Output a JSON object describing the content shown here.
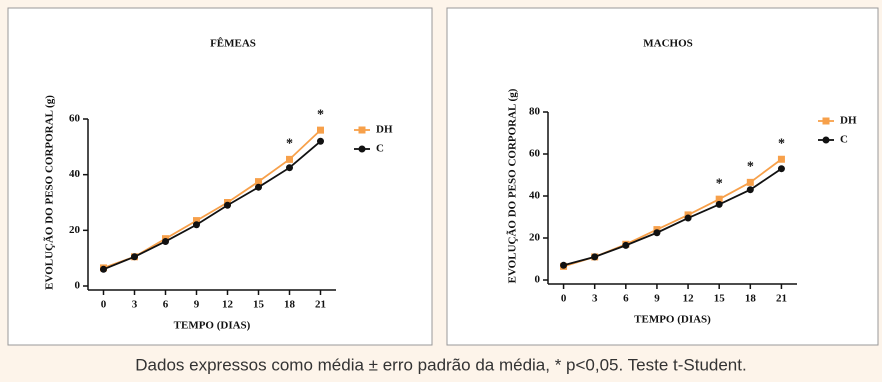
{
  "chart_data": [
    {
      "type": "line",
      "title": "FÊMEAS",
      "x_label": "TEMPO (DIAS)",
      "y_label": "EVOLUÇÃO DO PESO CORPORAL (g)",
      "x": [
        0,
        3,
        6,
        9,
        12,
        15,
        18,
        21
      ],
      "series": [
        {
          "name": "DH",
          "color": "#f7a04a",
          "marker": "square",
          "values": [
            6.5,
            10.5,
            17,
            23.5,
            30,
            37.5,
            45.5,
            56
          ]
        },
        {
          "name": "C",
          "color": "#111111",
          "marker": "circle",
          "values": [
            6,
            10.5,
            16,
            22,
            29,
            35.5,
            42.5,
            52
          ]
        }
      ],
      "xlim": [
        -1.5,
        22.5
      ],
      "xticks": [
        0,
        3,
        6,
        9,
        12,
        15,
        18,
        21
      ],
      "ylim": [
        0,
        60
      ],
      "yticks": [
        0,
        20,
        40,
        60
      ],
      "annotations": [
        {
          "text": "*",
          "x": 18
        },
        {
          "text": "*",
          "x": 21
        }
      ]
    },
    {
      "type": "line",
      "title": "MACHOS",
      "x_label": "TEMPO (DIAS)",
      "y_label": "EVOLUÇÃO DO PESO CORPORAL (g)",
      "x": [
        0,
        3,
        6,
        9,
        12,
        15,
        18,
        21
      ],
      "series": [
        {
          "name": "DH",
          "color": "#f7a04a",
          "marker": "square",
          "values": [
            6.5,
            11,
            17,
            24,
            31,
            38.5,
            46.5,
            57.5
          ]
        },
        {
          "name": "C",
          "color": "#111111",
          "marker": "circle",
          "values": [
            7,
            11,
            16.5,
            22.5,
            29.5,
            36,
            43,
            53
          ]
        }
      ],
      "xlim": [
        -1.5,
        22.5
      ],
      "xticks": [
        0,
        3,
        6,
        9,
        12,
        15,
        18,
        21
      ],
      "ylim": [
        0,
        80
      ],
      "yticks": [
        0,
        20,
        40,
        60,
        80
      ],
      "annotations": [
        {
          "text": "*",
          "x": 15
        },
        {
          "text": "*",
          "x": 18
        },
        {
          "text": "*",
          "x": 21
        }
      ]
    }
  ],
  "caption": "Dados expressos como média ± erro padrão da média, * p<0,05. Teste t-Student."
}
